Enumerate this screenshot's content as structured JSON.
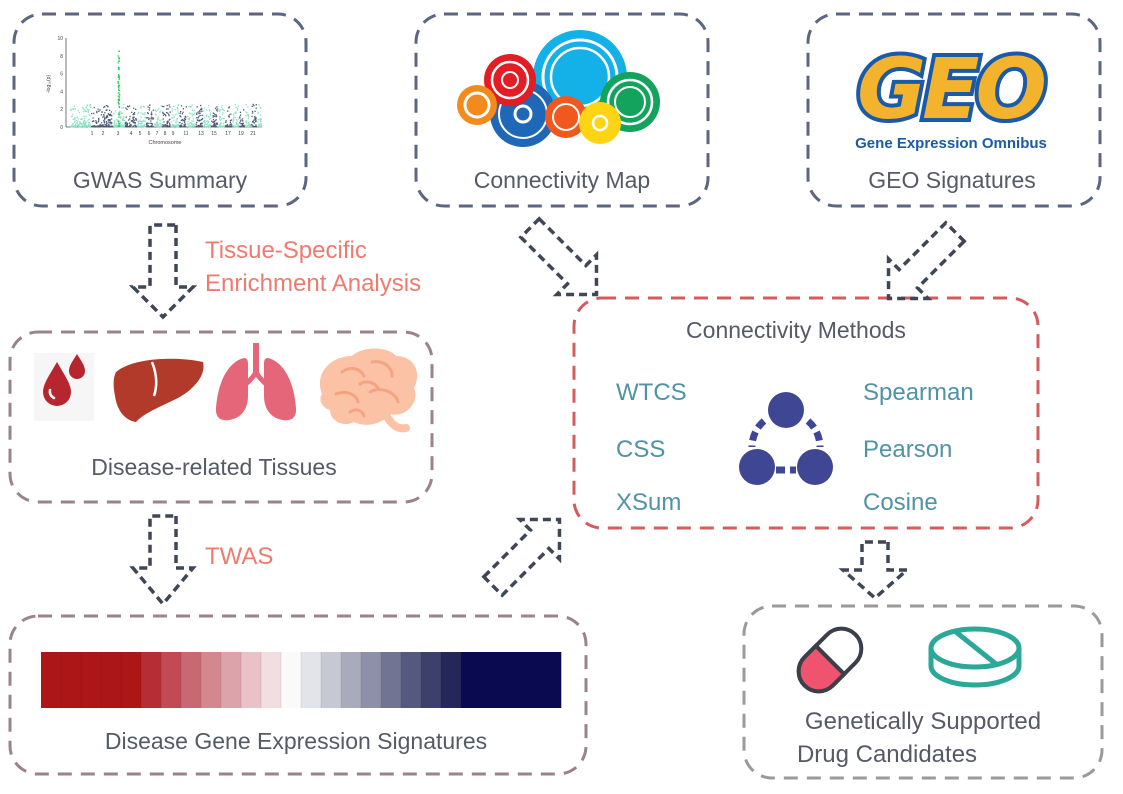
{
  "boxes": {
    "gwas": {
      "label": "GWAS Summary",
      "ylabel": "-log₁₀(p)",
      "xlabel": "Chromosome",
      "yticks": [
        "10",
        "8",
        "6",
        "4",
        "2",
        "0"
      ],
      "xticks": [
        "1",
        "2",
        "3",
        "4",
        "5",
        "6",
        "7",
        "8",
        "9",
        "11",
        "13",
        "15",
        "17",
        "19",
        "21"
      ]
    },
    "cmap": {
      "label": "Connectivity Map"
    },
    "geo": {
      "label": "GEO Signatures",
      "logo_text": "GEO",
      "logo_subtitle": "Gene Expression Omnibus"
    },
    "methods": {
      "title": "Connectivity Methods",
      "left": [
        "WTCS",
        "CSS",
        "XSum"
      ],
      "right": [
        "Spearman",
        "Pearson",
        "Cosine"
      ]
    },
    "tissues": {
      "label": "Disease-related Tissues"
    },
    "signatures": {
      "label": "Disease Gene Expression Signatures"
    },
    "drugs": {
      "label_line1": "Genetically Supported",
      "label_line2": "Drug Candidates"
    }
  },
  "steps": {
    "enrichment_line1": "Tissue-Specific",
    "enrichment_line2": "Enrichment Analysis",
    "twas": "TWAS"
  },
  "colors": {
    "step_text": "#ee7b6f",
    "method_text": "#4f93a5",
    "body_text": "#555a66",
    "border_gray_blue": "#5c6680",
    "border_red": "#d35d5d",
    "border_mauve": "#9a8389",
    "border_gray": "#9a9a9a",
    "network_icon": "#3f4694",
    "heat_red": "#ad1818",
    "heat_navy": "#0a0a50"
  },
  "heatmap_colors": [
    "#ad1616",
    "#ad1616",
    "#ad1616",
    "#ad1616",
    "#ad1616",
    "#b72d35",
    "#c14a55",
    "#c86872",
    "#d3878f",
    "#dda3aa",
    "#e8c2c7",
    "#f2dde0",
    "#fbfafb",
    "#e3e4ea",
    "#c6c8d3",
    "#a9abbd",
    "#8d90a8",
    "#717493",
    "#56597e",
    "#3d3f6c",
    "#25265a",
    "#0a0a50",
    "#0a0a50",
    "#0a0a50",
    "#0a0a50",
    "#0a0a50"
  ]
}
